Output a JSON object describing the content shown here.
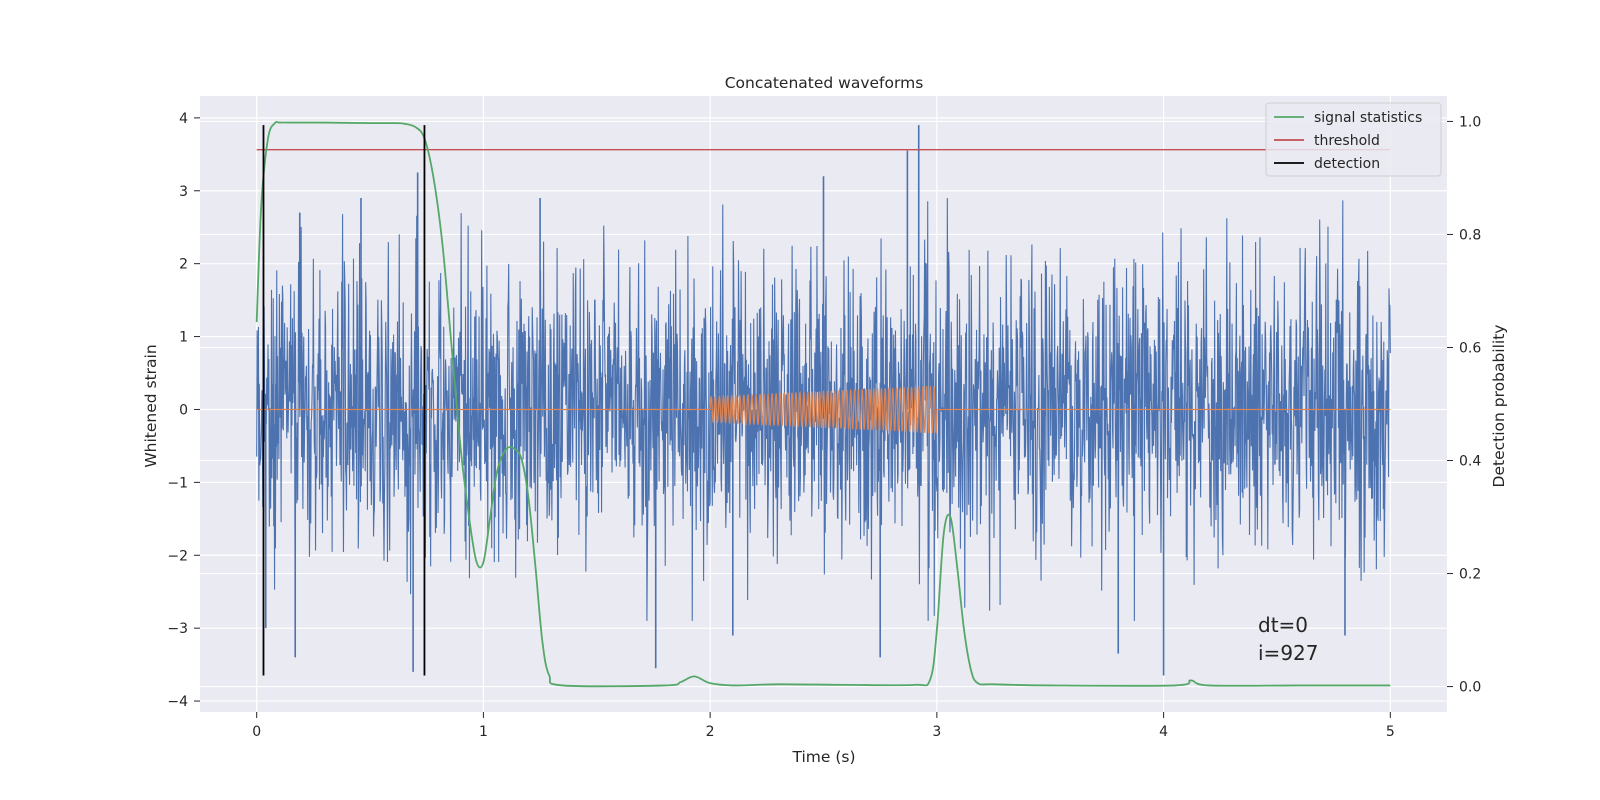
{
  "chart_data": {
    "type": "line",
    "title": "Concatenated waveforms",
    "xlabel": "Time (s)",
    "ylabel": "Whitened strain",
    "ylabel_right": "Detection probability",
    "xlim": [
      -0.25,
      5.25
    ],
    "ylim": [
      -4.15,
      4.3
    ],
    "ylim_right": [
      -0.045,
      1.045
    ],
    "x_ticks": [
      0,
      1,
      2,
      3,
      4,
      5
    ],
    "y_ticks": [
      -4,
      -3,
      -2,
      -1,
      0,
      1,
      2,
      3,
      4
    ],
    "y_ticks_right": [
      0.0,
      0.2,
      0.4,
      0.6,
      0.8,
      1.0
    ],
    "x_tick_labels": [
      "0",
      "1",
      "2",
      "3",
      "4",
      "5"
    ],
    "y_tick_labels": [
      "−4",
      "−3",
      "−2",
      "−1",
      "0",
      "1",
      "2",
      "3",
      "4"
    ],
    "y_tick_labels_right": [
      "0.0",
      "0.2",
      "0.4",
      "0.6",
      "0.8",
      "1.0"
    ],
    "grid": true,
    "legend_position": "top-right",
    "colors": {
      "background": "#eaeaf2",
      "grid": "#ffffff",
      "strain": "#4c72b0",
      "injected": "#dd8452",
      "signal_statistics": "#55a868",
      "threshold": "#c44e52",
      "detection": "#000000"
    },
    "series": [
      {
        "name": "",
        "axis": "left",
        "kind": "noise",
        "x_range": [
          0,
          5
        ],
        "typical_amplitude": 1.8,
        "peaks": [
          {
            "x": 0.04,
            "y": -3.0
          },
          {
            "x": 0.17,
            "y": -3.4
          },
          {
            "x": 0.19,
            "y": 2.7
          },
          {
            "x": 0.46,
            "y": 2.9
          },
          {
            "x": 0.69,
            "y": -3.6
          },
          {
            "x": 0.71,
            "y": 3.25
          },
          {
            "x": 1.25,
            "y": 2.9
          },
          {
            "x": 1.76,
            "y": -3.55
          },
          {
            "x": 2.1,
            "y": -3.1
          },
          {
            "x": 2.5,
            "y": 3.2
          },
          {
            "x": 2.75,
            "y": -3.4
          },
          {
            "x": 2.87,
            "y": 3.55
          },
          {
            "x": 2.92,
            "y": 3.9
          },
          {
            "x": 3.8,
            "y": -3.35
          },
          {
            "x": 4.0,
            "y": -3.65
          },
          {
            "x": 4.8,
            "y": -3.1
          }
        ]
      },
      {
        "name": "",
        "axis": "left",
        "kind": "chirp",
        "x": [
          0,
          2,
          3,
          5
        ],
        "amplitude": [
          0,
          0.18,
          0.33,
          0
        ]
      },
      {
        "name": "signal statistics",
        "axis": "right",
        "x": [
          0.0,
          0.02,
          0.05,
          0.08,
          0.1,
          0.15,
          0.3,
          0.5,
          0.6,
          0.65,
          0.7,
          0.74,
          0.78,
          0.82,
          0.86,
          0.9,
          0.94,
          0.97,
          1.0,
          1.03,
          1.06,
          1.1,
          1.14,
          1.17,
          1.2,
          1.23,
          1.26,
          1.29,
          1.35,
          1.8,
          1.87,
          1.93,
          2.0,
          2.1,
          2.3,
          2.6,
          2.9,
          2.97,
          3.0,
          3.03,
          3.06,
          3.09,
          3.12,
          3.15,
          3.18,
          3.25,
          3.5,
          4.05,
          4.12,
          4.2,
          4.6,
          5.0
        ],
        "values": [
          0.645,
          0.85,
          0.97,
          0.997,
          0.998,
          0.998,
          0.998,
          0.997,
          0.997,
          0.996,
          0.99,
          0.97,
          0.9,
          0.78,
          0.6,
          0.42,
          0.29,
          0.22,
          0.22,
          0.3,
          0.38,
          0.42,
          0.42,
          0.4,
          0.33,
          0.21,
          0.08,
          0.02,
          0.002,
          0.002,
          0.008,
          0.018,
          0.006,
          0.002,
          0.004,
          0.003,
          0.003,
          0.012,
          0.1,
          0.27,
          0.3,
          0.21,
          0.1,
          0.03,
          0.006,
          0.004,
          0.002,
          0.002,
          0.011,
          0.002,
          0.002,
          0.002
        ]
      },
      {
        "name": "threshold",
        "axis": "right",
        "x": [
          0,
          5
        ],
        "values": [
          0.95,
          0.95
        ]
      },
      {
        "name": "detection",
        "axis": "left",
        "kind": "vertical_lines",
        "x": [
          0.03,
          0.74
        ],
        "y_range": [
          -3.65,
          3.9
        ]
      }
    ],
    "annotations": [
      "dt=0",
      "i=927"
    ]
  }
}
